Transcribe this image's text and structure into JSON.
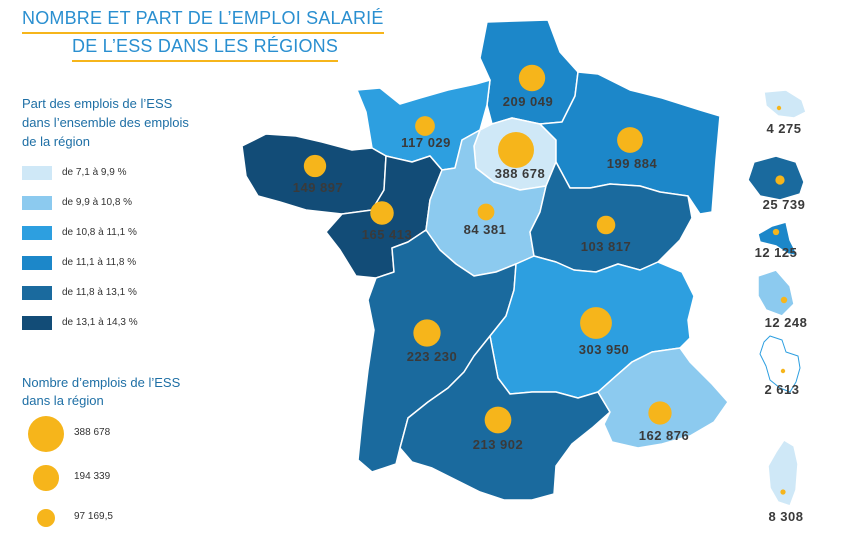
{
  "title": {
    "line1": "NOMBRE ET PART DE L’EMPLOI SALARIÉ",
    "line2": "DE L’ESS DANS LES RÉGIONS"
  },
  "legend_share": {
    "heading_lines": [
      "Part des emplois de l’ESS",
      "dans l’ensemble des emplois",
      "de la région"
    ],
    "classes": [
      {
        "label": "de 7,1 à 9,9 %",
        "color": "#cfe8f7"
      },
      {
        "label": "de 9,9 à 10,8 %",
        "color": "#8ccaef"
      },
      {
        "label": "de 10,8 à 11,1 %",
        "color": "#2d9fe0"
      },
      {
        "label": "de 11,1 à 11,8 %",
        "color": "#1c87c9"
      },
      {
        "label": "de 11,8 à 13,1 %",
        "color": "#1a6a9e"
      },
      {
        "label": "de 13,1 à 14,3 %",
        "color": "#124c77"
      }
    ]
  },
  "legend_count": {
    "heading_lines": [
      "Nombre d’emplois de l’ESS",
      "dans la région"
    ],
    "bubbles": [
      {
        "label": "388 678",
        "value": 388678
      },
      {
        "label": "194 339",
        "value": 194339
      },
      {
        "label": "97 169,5",
        "value": 97169.5
      }
    ]
  },
  "bubble_color": "#f6b51b",
  "regions": [
    {
      "id": "hauts-de-france",
      "label": "209 049",
      "value": 209049,
      "class": 3
    },
    {
      "id": "normandie",
      "label": "117 029",
      "value": 117029,
      "class": 2
    },
    {
      "id": "ile-de-france",
      "label": "388 678",
      "value": 388678,
      "class": 0
    },
    {
      "id": "grand-est",
      "label": "199 884",
      "value": 199884,
      "class": 3
    },
    {
      "id": "bretagne",
      "label": "149 897",
      "value": 149897,
      "class": 5
    },
    {
      "id": "pays-de-la-loire",
      "label": "165 413",
      "value": 165413,
      "class": 5
    },
    {
      "id": "centre-val-de-loire",
      "label": "84 381",
      "value": 84381,
      "class": 1
    },
    {
      "id": "bourgogne-franche-comte",
      "label": "103 817",
      "value": 103817,
      "class": 4
    },
    {
      "id": "nouvelle-aquitaine",
      "label": "223 230",
      "value": 223230,
      "class": 4
    },
    {
      "id": "auvergne-rhone-alpes",
      "label": "303 950",
      "value": 303950,
      "class": 2
    },
    {
      "id": "occitanie",
      "label": "213 902",
      "value": 213902,
      "class": 4
    },
    {
      "id": "provence-alpes-cote-d-azur",
      "label": "162 876",
      "value": 162876,
      "class": 1
    },
    {
      "id": "guadeloupe",
      "label": "4 275",
      "value": 4275,
      "class": 0
    },
    {
      "id": "la-reunion",
      "label": "25 739",
      "value": 25739,
      "class": 4
    },
    {
      "id": "martinique",
      "label": "12 125",
      "value": 12125,
      "class": 3
    },
    {
      "id": "guyane",
      "label": "12 248",
      "value": 12248,
      "class": 1
    },
    {
      "id": "mayotte",
      "label": "2 613",
      "value": 2613,
      "class": -1
    },
    {
      "id": "corse",
      "label": "8 308",
      "value": 8308,
      "class": 0
    }
  ]
}
